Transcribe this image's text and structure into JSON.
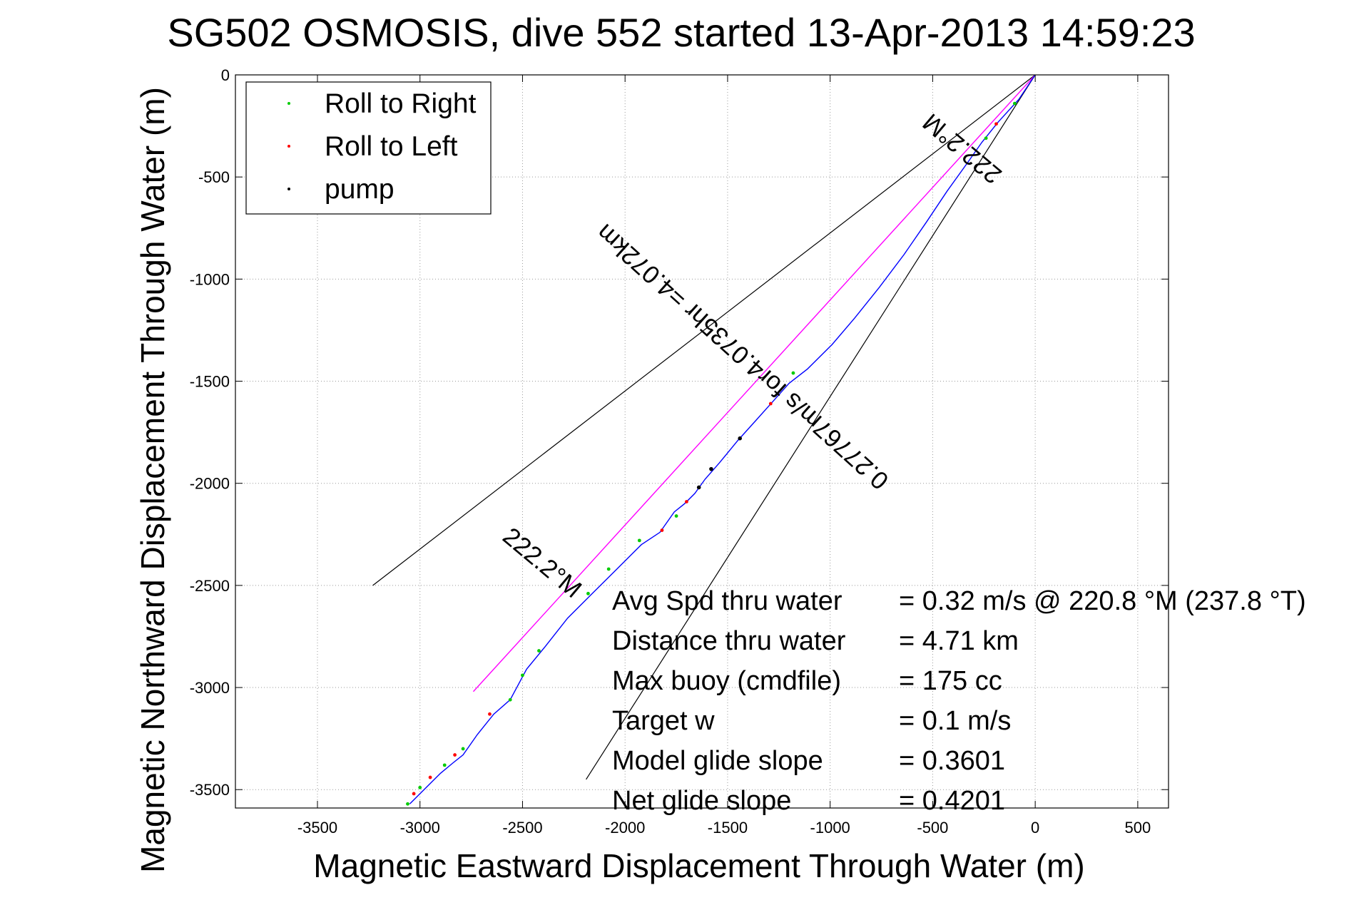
{
  "chart_data": {
    "type": "line",
    "title": "SG502 OSMOSIS, dive 552 started 13-Apr-2013 14:59:23",
    "xlabel": "Magnetic Eastward Displacement Through Water (m)",
    "ylabel": "Magnetic Northward Displacement Through Water (m)",
    "xlim": [
      -3900,
      650
    ],
    "ylim": [
      -3590,
      0
    ],
    "xticks": [
      -3500,
      -3000,
      -2500,
      -2000,
      -1500,
      -1000,
      -500,
      0,
      500
    ],
    "yticks": [
      0,
      -500,
      -1000,
      -1500,
      -2000,
      -2500,
      -3000,
      -3500
    ],
    "grid": true,
    "legend_position": "top-left",
    "legend": [
      {
        "label": "Roll to Right",
        "color": "#00cc00"
      },
      {
        "label": "Roll to Left",
        "color": "#ff0000"
      },
      {
        "label": "pump",
        "color": "#000000"
      }
    ],
    "track": {
      "color": "#0000ff",
      "x": [
        0,
        -80,
        -180,
        -260,
        -330,
        -430,
        -530,
        -640,
        -760,
        -880,
        -990,
        -1110,
        -1200,
        -1280,
        -1360,
        -1450,
        -1540,
        -1610,
        -1660,
        -1710,
        -1760,
        -1830,
        -1920,
        -2040,
        -2160,
        -2280,
        -2390,
        -2480,
        -2560,
        -2640,
        -2720,
        -2790,
        -2840,
        -2900,
        -2960,
        -3010,
        -3050
      ],
      "y": [
        0,
        -120,
        -230,
        -330,
        -430,
        -570,
        -720,
        -880,
        -1040,
        -1190,
        -1320,
        -1440,
        -1510,
        -1600,
        -1690,
        -1790,
        -1900,
        -1980,
        -2050,
        -2100,
        -2140,
        -2240,
        -2300,
        -2420,
        -2540,
        -2660,
        -2800,
        -2910,
        -3060,
        -3130,
        -3230,
        -3330,
        -3370,
        -3420,
        -3480,
        -3530,
        -3570
      ]
    },
    "points": [
      {
        "x": -100,
        "y": -140,
        "kind": "right"
      },
      {
        "x": -190,
        "y": -240,
        "kind": "left"
      },
      {
        "x": -240,
        "y": -310,
        "kind": "right"
      },
      {
        "x": -1180,
        "y": -1460,
        "kind": "right"
      },
      {
        "x": -1290,
        "y": -1610,
        "kind": "left"
      },
      {
        "x": -1440,
        "y": -1780,
        "kind": "pump"
      },
      {
        "x": -1580,
        "y": -1930,
        "kind": "pump"
      },
      {
        "x": -1640,
        "y": -2020,
        "kind": "pump"
      },
      {
        "x": -1700,
        "y": -2090,
        "kind": "left"
      },
      {
        "x": -1750,
        "y": -2160,
        "kind": "right"
      },
      {
        "x": -1820,
        "y": -2230,
        "kind": "left"
      },
      {
        "x": -1930,
        "y": -2280,
        "kind": "right"
      },
      {
        "x": -2080,
        "y": -2420,
        "kind": "right"
      },
      {
        "x": -2180,
        "y": -2540,
        "kind": "right"
      },
      {
        "x": -2420,
        "y": -2820,
        "kind": "right"
      },
      {
        "x": -2500,
        "y": -2940,
        "kind": "right"
      },
      {
        "x": -2560,
        "y": -3060,
        "kind": "right"
      },
      {
        "x": -2660,
        "y": -3130,
        "kind": "left"
      },
      {
        "x": -2790,
        "y": -3300,
        "kind": "right"
      },
      {
        "x": -2830,
        "y": -3330,
        "kind": "left"
      },
      {
        "x": -2880,
        "y": -3380,
        "kind": "right"
      },
      {
        "x": -2950,
        "y": -3440,
        "kind": "left"
      },
      {
        "x": -3000,
        "y": -3490,
        "kind": "right"
      },
      {
        "x": -3030,
        "y": -3520,
        "kind": "left"
      },
      {
        "x": -3060,
        "y": -3570,
        "kind": "right"
      }
    ],
    "heading_line": {
      "color": "#ff00ff",
      "x": [
        0,
        -2740
      ],
      "y": [
        0,
        -3020
      ]
    },
    "wedge_lines": [
      {
        "color": "#000000",
        "x": [
          0,
          -3230
        ],
        "y": [
          0,
          -2500
        ]
      },
      {
        "color": "#000000",
        "x": [
          0,
          -2190
        ],
        "y": [
          0,
          -3450
        ]
      }
    ],
    "annotations": [
      {
        "text": "222.2°M",
        "x": -330,
        "y": -330
      },
      {
        "text": "0.27767m/s for4.0735hr =4.072km",
        "x": -1400,
        "y": -1350
      },
      {
        "text": "222.2°M",
        "x": -2430,
        "y": -2420
      }
    ],
    "stats": [
      {
        "label": "Avg Spd thru water",
        "value": "=  0.32 m/s @ 220.8  °M (237.8 °T)"
      },
      {
        "label": "Distance thru water",
        "value": "=  4.71 km"
      },
      {
        "label": "Max buoy (cmdfile)",
        "value": "= 175 cc"
      },
      {
        "label": "Target w",
        "value": "= 0.1 m/s"
      },
      {
        "label": "Model glide slope",
        "value": "= 0.3601"
      },
      {
        "label": "Net glide slope",
        "value": "= 0.4201"
      }
    ]
  }
}
